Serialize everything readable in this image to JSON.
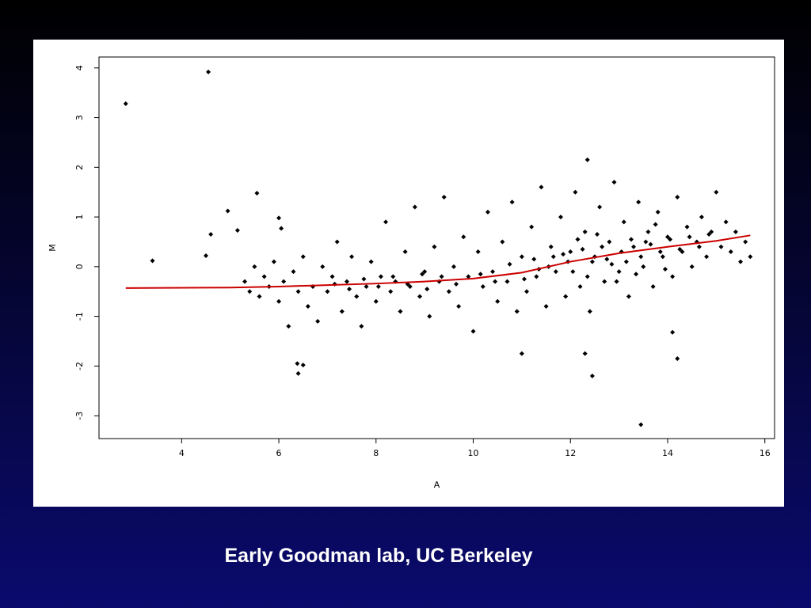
{
  "slide": {
    "caption": "Early Goodman lab, UC Berkeley"
  },
  "chart_data": {
    "type": "scatter",
    "xlabel": "A",
    "ylabel": "M",
    "xlim": [
      2.3,
      16.2
    ],
    "ylim": [
      -3.46,
      4.22
    ],
    "xticks": [
      4,
      6,
      8,
      10,
      12,
      14,
      16
    ],
    "yticks": [
      -3,
      -2,
      -1,
      0,
      1,
      2,
      3,
      4
    ],
    "series": [
      {
        "type": "scatter",
        "color": "#000000",
        "x": [
          5.3,
          5.4,
          5.5,
          5.6,
          5.7,
          5.8,
          5.9,
          6.0,
          6.1,
          6.2,
          6.3,
          6.4,
          6.5,
          6.6,
          6.7,
          6.8,
          6.9,
          7.0,
          7.1,
          7.2,
          7.3,
          7.4,
          7.5,
          7.6,
          7.7,
          7.8,
          7.9,
          8.0,
          8.1,
          8.2,
          8.3,
          8.4,
          8.5,
          8.6,
          8.7,
          8.8,
          8.9,
          9.0,
          9.1,
          9.2,
          9.3,
          9.4,
          9.5,
          9.6,
          9.7,
          9.8,
          9.9,
          10.0,
          10.1,
          10.2,
          10.3,
          10.4,
          10.5,
          10.6,
          10.7,
          10.8,
          10.9,
          11.0,
          11.1,
          11.2,
          11.3,
          11.4,
          11.5,
          11.6,
          11.7,
          11.8,
          11.9,
          12.0,
          12.1,
          12.2,
          12.3,
          12.4,
          12.5,
          12.6,
          12.7,
          12.8,
          12.9,
          13.0,
          13.1,
          13.2,
          13.3,
          13.4,
          13.5,
          13.6,
          13.7,
          13.8,
          13.9,
          14.0,
          14.1,
          14.2,
          14.3,
          14.4,
          14.5,
          14.6,
          14.7,
          14.8,
          14.9,
          15.0,
          15.1,
          15.2,
          15.3,
          15.4,
          15.5,
          15.6,
          15.7,
          9.05,
          9.35,
          9.65,
          10.15,
          10.45,
          10.75,
          11.05,
          11.25,
          11.55,
          11.85,
          12.05,
          12.25,
          12.45,
          12.65,
          12.85,
          13.05,
          13.25,
          13.45,
          13.65,
          13.85,
          14.05,
          14.25,
          14.45,
          14.65,
          14.85,
          7.15,
          7.45,
          7.75,
          8.05,
          8.35,
          8.65,
          8.95,
          11.35,
          11.65,
          11.95,
          12.15,
          12.35,
          12.55,
          12.75,
          12.95,
          13.15,
          13.35,
          13.55,
          13.75,
          13.95,
          2.85,
          4.55,
          3.4,
          4.5,
          4.6,
          4.95,
          5.15,
          5.55,
          6.0,
          6.05,
          6.4,
          6.38,
          6.5,
          12.3,
          12.45,
          13.45,
          14.2,
          12.35,
          14.1,
          11.0
        ],
        "values": [
          -0.3,
          -0.5,
          0.0,
          -0.6,
          -0.2,
          -0.4,
          0.1,
          -0.7,
          -0.3,
          -1.2,
          -0.1,
          -0.5,
          0.2,
          -0.8,
          -0.4,
          -1.1,
          0.0,
          -0.5,
          -0.2,
          0.5,
          -0.9,
          -0.3,
          0.2,
          -0.6,
          -1.2,
          -0.4,
          0.1,
          -0.7,
          -0.2,
          0.9,
          -0.5,
          -0.3,
          -0.9,
          0.3,
          -0.4,
          1.2,
          -0.6,
          -0.1,
          -1.0,
          0.4,
          -0.3,
          1.4,
          -0.5,
          0.0,
          -0.8,
          0.6,
          -0.2,
          -1.3,
          0.3,
          -0.4,
          1.1,
          -0.1,
          -0.7,
          0.5,
          -0.3,
          1.3,
          -0.9,
          0.2,
          -0.5,
          0.8,
          -0.2,
          1.6,
          -0.8,
          0.4,
          -0.1,
          1.0,
          -0.6,
          0.3,
          1.5,
          -0.4,
          0.7,
          -0.9,
          0.2,
          1.2,
          -0.3,
          0.5,
          1.7,
          -0.1,
          0.9,
          -0.6,
          0.4,
          1.3,
          0.0,
          0.7,
          -0.4,
          1.1,
          0.2,
          0.6,
          -0.2,
          1.4,
          0.3,
          0.8,
          0.0,
          0.5,
          1.0,
          0.2,
          0.7,
          1.5,
          0.4,
          0.9,
          0.3,
          0.7,
          0.1,
          0.5,
          0.2,
          -0.45,
          -0.2,
          -0.35,
          -0.15,
          -0.3,
          0.05,
          -0.25,
          0.15,
          0.0,
          0.25,
          -0.1,
          0.35,
          0.1,
          0.4,
          0.05,
          0.3,
          0.55,
          0.2,
          0.45,
          0.3,
          0.55,
          0.35,
          0.6,
          0.4,
          0.65,
          -0.35,
          -0.45,
          -0.25,
          -0.4,
          -0.2,
          -0.35,
          -0.15,
          -0.05,
          0.2,
          0.1,
          0.55,
          -0.2,
          0.65,
          0.15,
          -0.3,
          0.1,
          -0.15,
          0.5,
          0.85,
          -0.05,
          3.28,
          3.92,
          0.12,
          0.22,
          0.65,
          1.12,
          0.73,
          1.48,
          0.98,
          0.77,
          -2.15,
          -1.95,
          -1.98,
          -1.75,
          -2.2,
          -3.18,
          -1.85,
          2.15,
          -1.32,
          -1.75
        ]
      },
      {
        "type": "line",
        "color": "#cc0000",
        "x": [
          2.85,
          5,
          6,
          7,
          8,
          9,
          10,
          11,
          12,
          13,
          14,
          15,
          15.7
        ],
        "values": [
          -0.43,
          -0.42,
          -0.4,
          -0.37,
          -0.34,
          -0.3,
          -0.24,
          -0.12,
          0.1,
          0.27,
          0.4,
          0.52,
          0.63
        ]
      }
    ]
  }
}
